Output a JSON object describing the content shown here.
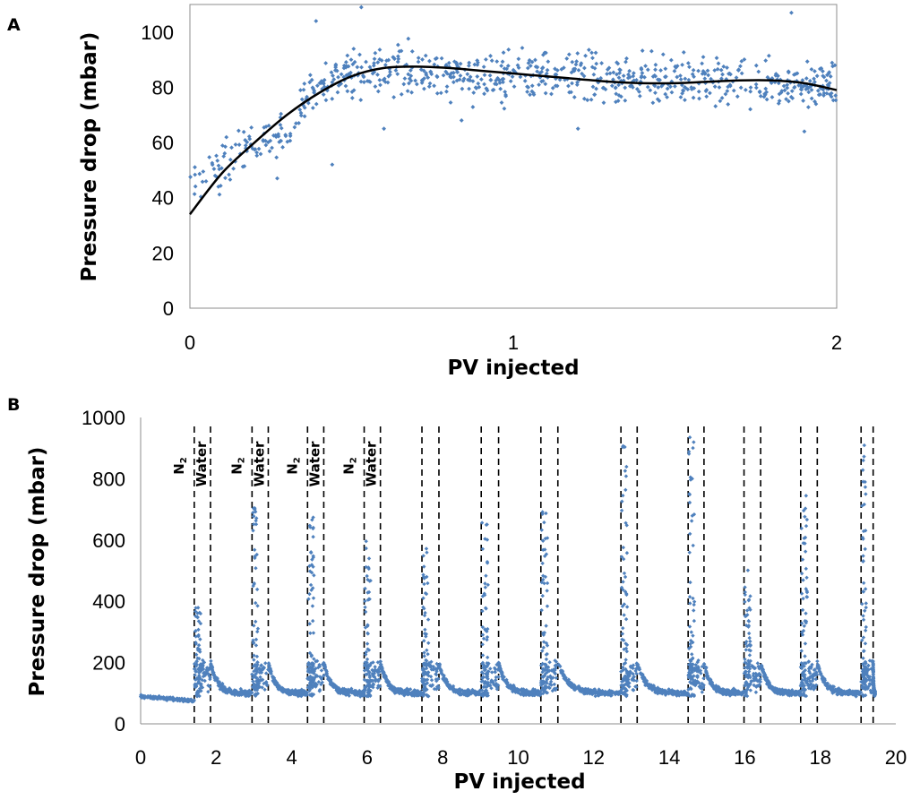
{
  "chart_data": [
    {
      "panel_label": "A",
      "type": "scatter",
      "xlabel": "PV injected",
      "ylabel": "Pressure drop (mbar)",
      "xlim": [
        0,
        2
      ],
      "ylim": [
        0,
        110
      ],
      "x_ticks": [
        "0",
        "1",
        "2"
      ],
      "y_ticks": [
        "0",
        "20",
        "40",
        "60",
        "80",
        "100"
      ],
      "marker_color": "#4F81BD",
      "trend_color": "#000000",
      "series": [
        {
          "kind": "scatter",
          "points_note_excluded": true,
          "segments": [
            {
              "x0": 0.0,
              "x1": 0.35,
              "y0": 44,
              "y1": 70,
              "spread": 9,
              "n": 100
            },
            {
              "x0": 0.35,
              "x1": 0.5,
              "y0": 76,
              "y1": 87,
              "spread": 7,
              "n": 70
            },
            {
              "x0": 0.5,
              "x1": 1.0,
              "y0": 86,
              "y1": 84,
              "spread": 10,
              "n": 210
            },
            {
              "x0": 1.0,
              "x1": 2.0,
              "y0": 84,
              "y1": 81,
              "spread": 9,
              "n": 420
            }
          ],
          "outliers": [
            [
              0.39,
              104
            ],
            [
              0.53,
              109
            ],
            [
              1.86,
              107
            ],
            [
              0.6,
              65
            ],
            [
              0.84,
              68
            ],
            [
              1.2,
              65
            ],
            [
              1.9,
              64
            ],
            [
              0.44,
              52
            ],
            [
              0.27,
              47
            ]
          ]
        },
        {
          "kind": "trendline",
          "x": [
            0,
            0.1,
            0.2,
            0.3,
            0.4,
            0.5,
            0.6,
            0.7,
            0.8,
            0.9,
            1.0,
            1.1,
            1.2,
            1.3,
            1.4,
            1.5,
            1.6,
            1.7,
            1.8,
            1.9,
            2.0
          ],
          "y": [
            34,
            49,
            60,
            70,
            78,
            84,
            87,
            87.5,
            87,
            86,
            85,
            84,
            83,
            82,
            81.5,
            81.5,
            82,
            82.5,
            82.5,
            81.5,
            79
          ]
        }
      ]
    },
    {
      "panel_label": "B",
      "type": "scatter",
      "xlabel": "PV injected",
      "ylabel": "Pressure drop (mbar)",
      "xlim": [
        0,
        20
      ],
      "ylim": [
        0,
        1000
      ],
      "x_ticks": [
        "0",
        "2",
        "4",
        "6",
        "8",
        "10",
        "12",
        "14",
        "16",
        "18",
        "20"
      ],
      "y_ticks": [
        "0",
        "200",
        "400",
        "600",
        "800",
        "1000"
      ],
      "marker_color": "#4F81BD",
      "cycle_boundaries": [
        [
          1.42,
          1.85
        ],
        [
          2.95,
          3.38
        ],
        [
          4.42,
          4.85
        ],
        [
          5.92,
          6.35
        ],
        [
          7.45,
          7.9
        ],
        [
          9.02,
          9.48
        ],
        [
          10.6,
          11.05
        ],
        [
          12.72,
          13.15
        ],
        [
          14.5,
          14.92
        ],
        [
          15.98,
          16.42
        ],
        [
          17.48,
          17.92
        ],
        [
          19.08,
          19.4
        ]
      ],
      "cycle_peaks": [
        380,
        720,
        680,
        610,
        620,
        665,
        700,
        920,
        975,
        510,
        755,
        940
      ],
      "phase_labels": [
        {
          "n2": "N",
          "sub": "2",
          "water": "Water"
        },
        {
          "n2": "N",
          "sub": "2",
          "water": "Water"
        },
        {
          "n2": "N",
          "sub": "2",
          "water": "Water"
        },
        {
          "n2": "N",
          "sub": "2",
          "water": "Water"
        }
      ],
      "baseline": {
        "first_segment": [
          0,
          1.42,
          90
        ],
        "plateau": 100,
        "decay_peak": 200
      }
    }
  ]
}
